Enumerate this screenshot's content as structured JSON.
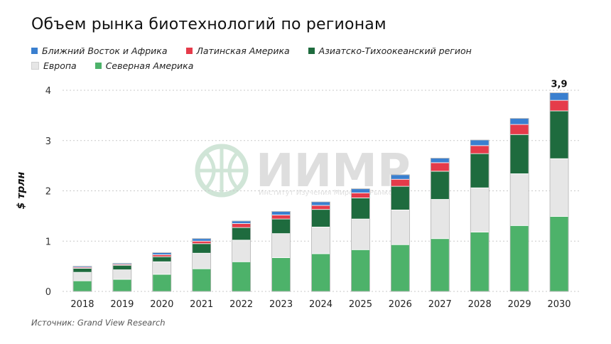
{
  "title": "Объем рынка биотехнологий по регионам",
  "ylabel": "$ трлн",
  "source": "Источник: Grand View Research",
  "watermark": {
    "name": "ИИМР",
    "subtitle": "Институт Изучения Мировых Рынков"
  },
  "colors": {
    "mea": "#3a7fcf",
    "latam": "#e53b4a",
    "apac": "#1e6b3e",
    "europe": "#e6e6e6",
    "na": "#4db26a"
  },
  "legend": [
    {
      "key": "mea",
      "label": "Ближний Восток и Африка"
    },
    {
      "key": "latam",
      "label": "Латинская Америка"
    },
    {
      "key": "apac",
      "label": "Азиатско-Тихоокеанский регион"
    },
    {
      "key": "europe",
      "label": "Европа"
    },
    {
      "key": "na",
      "label": "Северная Америка"
    }
  ],
  "chart_data": {
    "type": "bar",
    "stacked": true,
    "categories": [
      "2018",
      "2019",
      "2020",
      "2021",
      "2022",
      "2023",
      "2024",
      "2025",
      "2026",
      "2027",
      "2028",
      "2029",
      "2030"
    ],
    "series": [
      {
        "key": "na",
        "name": "Северная Америка",
        "values": [
          0.21,
          0.24,
          0.34,
          0.45,
          0.59,
          0.67,
          0.75,
          0.83,
          0.93,
          1.05,
          1.18,
          1.31,
          1.49
        ]
      },
      {
        "key": "europe",
        "name": "Европа",
        "values": [
          0.17,
          0.19,
          0.25,
          0.31,
          0.43,
          0.48,
          0.53,
          0.61,
          0.69,
          0.78,
          0.88,
          1.03,
          1.15
        ]
      },
      {
        "key": "apac",
        "name": "Азиатско-Тихоокеанский регион",
        "values": [
          0.08,
          0.09,
          0.1,
          0.19,
          0.25,
          0.29,
          0.35,
          0.42,
          0.47,
          0.56,
          0.68,
          0.78,
          0.95
        ]
      },
      {
        "key": "latam",
        "name": "Латинская Америка",
        "values": [
          0.02,
          0.02,
          0.04,
          0.05,
          0.08,
          0.08,
          0.08,
          0.1,
          0.14,
          0.17,
          0.16,
          0.2,
          0.21
        ]
      },
      {
        "key": "mea",
        "name": "Ближний Восток и Африка",
        "values": [
          0.02,
          0.02,
          0.04,
          0.05,
          0.05,
          0.07,
          0.07,
          0.08,
          0.09,
          0.09,
          0.11,
          0.12,
          0.15
        ]
      }
    ],
    "total_labels": [
      {
        "category": "2030",
        "label": "3,9"
      }
    ],
    "yticks": [
      0,
      1,
      2,
      3,
      4
    ],
    "ylim": [
      0,
      4
    ],
    "grid": true,
    "legend_position": "top-left"
  }
}
